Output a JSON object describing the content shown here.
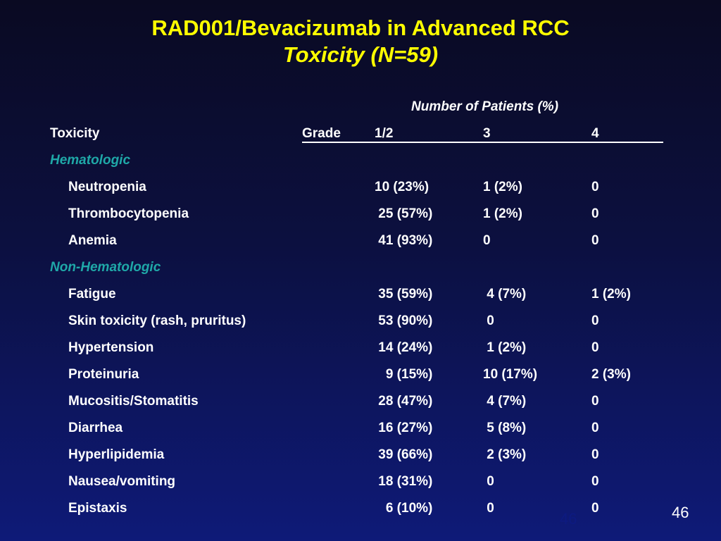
{
  "slide": {
    "title": "RAD001/Bevacizumab in Advanced RCC",
    "subtitle": "Toxicity (N=59)",
    "page_number_faint": "46",
    "page_number": "46"
  },
  "table": {
    "group_header": "Number of Patients (%)",
    "headers": {
      "toxicity": "Toxicity",
      "grade": "Grade",
      "g12": "1/2",
      "g3": "3",
      "g4": "4"
    },
    "categories": [
      "Hematologic",
      "Non-Hematologic"
    ],
    "rows": [
      {
        "name": "Neutropenia",
        "g12": "10 (23%)",
        "g3": "1 (2%)",
        "g4": "0"
      },
      {
        "name": "Thrombocytopenia",
        "g12": " 25 (57%)",
        "g3": "1 (2%)",
        "g4": "0"
      },
      {
        "name": "Anemia",
        "g12": " 41 (93%)",
        "g3": "0",
        "g4": "0"
      },
      {
        "name": "Fatigue",
        "g12": " 35 (59%)",
        "g3": " 4 (7%)",
        "g4": "1 (2%)"
      },
      {
        "name": "Skin toxicity (rash, pruritus)",
        "g12": " 53 (90%)",
        "g3": " 0",
        "g4": "0"
      },
      {
        "name": "Hypertension",
        "g12": " 14 (24%)",
        "g3": " 1 (2%)",
        "g4": "0"
      },
      {
        "name": "Proteinuria",
        "g12": "   9 (15%)",
        "g3": "10 (17%)",
        "g4": "2 (3%)"
      },
      {
        "name": "Mucositis/Stomatitis",
        "g12": " 28 (47%)",
        "g3": " 4 (7%)",
        "g4": "0"
      },
      {
        "name": "Diarrhea",
        "g12": " 16 (27%)",
        "g3": " 5 (8%)",
        "g4": "0"
      },
      {
        "name": "Hyperlipidemia",
        "g12": " 39 (66%)",
        "g3": " 2 (3%)",
        "g4": "0"
      },
      {
        "name": "Nausea/vomiting",
        "g12": " 18 (31%)",
        "g3": " 0",
        "g4": "0"
      },
      {
        "name": "Epistaxis",
        "g12": "   6 (10%)",
        "g3": " 0",
        "g4": "0"
      }
    ]
  }
}
